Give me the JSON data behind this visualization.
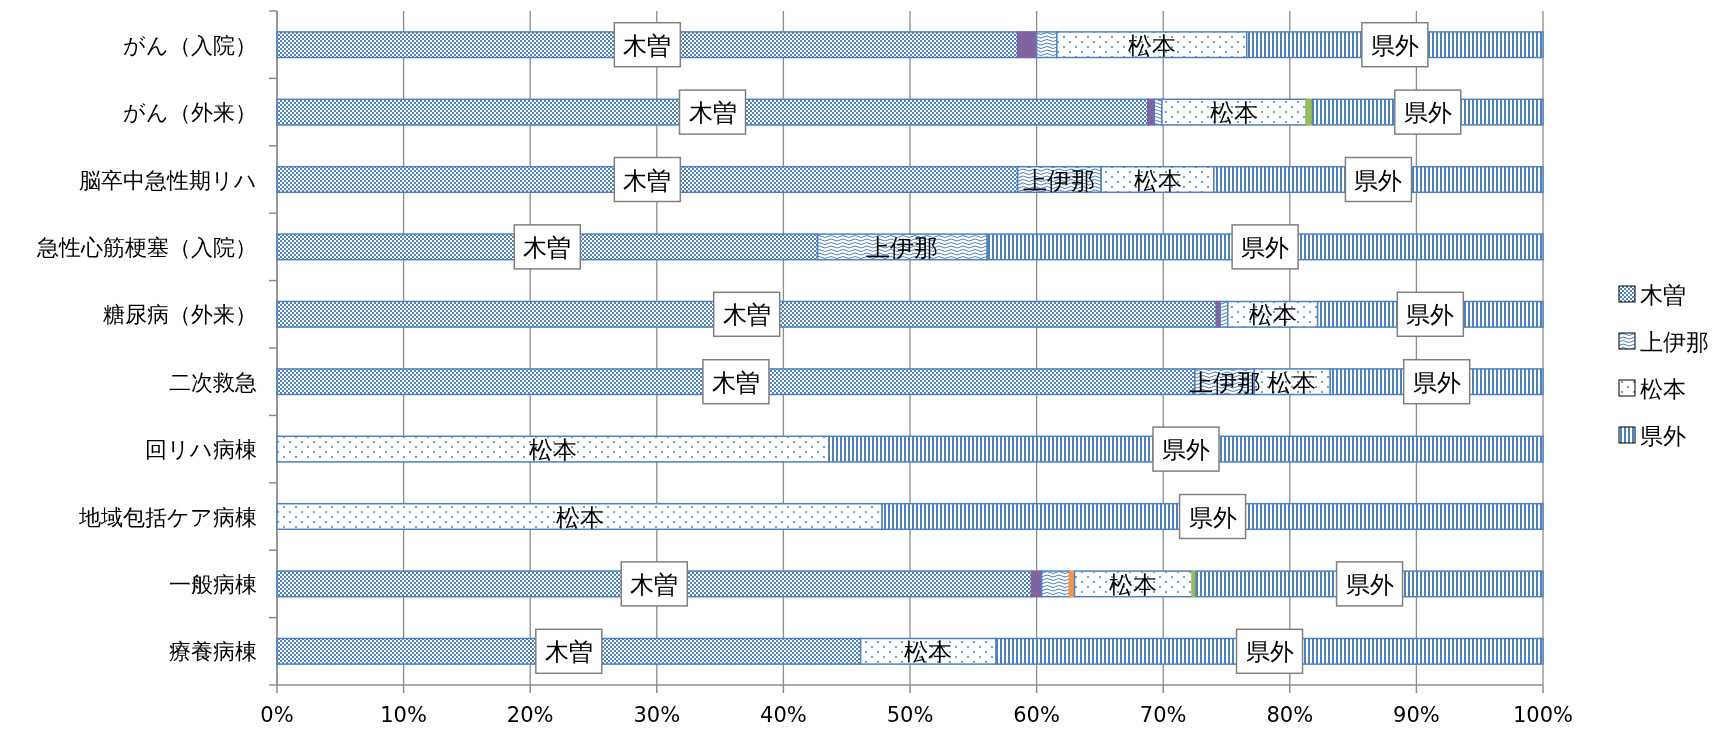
{
  "chart_data": {
    "type": "bar",
    "orientation": "horizontal",
    "stacked": true,
    "grid": "x",
    "legend": "right",
    "categories": [
      "がん（入院）",
      "がん（外来）",
      "脳卒中急性期リハ",
      "急性心筋梗塞（入院）",
      "糖尿病（外来）",
      "二次救急",
      "回リハ病棟",
      "地域包括ケア病棟",
      "一般病棟",
      "療養病棟"
    ],
    "xlim": [
      0,
      100
    ],
    "xticks": [
      {
        "value": 0,
        "label": "0%"
      },
      {
        "value": 10,
        "label": "10%"
      },
      {
        "value": 20,
        "label": "20%"
      },
      {
        "value": 30,
        "label": "30%"
      },
      {
        "value": 40,
        "label": "40%"
      },
      {
        "value": 50,
        "label": "50%"
      },
      {
        "value": 60,
        "label": "60%"
      },
      {
        "value": 70,
        "label": "70%"
      },
      {
        "value": 80,
        "label": "80%"
      },
      {
        "value": 90,
        "label": "90%"
      },
      {
        "value": 100,
        "label": "100%"
      }
    ],
    "series": [
      {
        "name": "木曽",
        "color": "#4f81bd",
        "values": [
          58.5,
          68.8,
          58.5,
          42.7,
          74.2,
          72.5,
          0,
          0,
          59.6,
          46.1
        ],
        "value_labels": [
          "木曽",
          "木曽",
          "木曽",
          "木曽",
          "木曽",
          "木曽",
          null,
          null,
          "木曽",
          "木曽"
        ]
      },
      {
        "color": "#8064a2",
        "values": [
          1.5,
          0.5,
          0,
          0,
          0.3,
          0,
          0,
          0,
          0.8,
          0
        ]
      },
      {
        "name": "上伊那",
        "color": "#4f81bd",
        "values": [
          1.6,
          0.6,
          6.6,
          13.4,
          0.6,
          4.7,
          0,
          0,
          2.2,
          0
        ],
        "value_labels": [
          null,
          null,
          "上伊那",
          "上伊那",
          null,
          "上伊那",
          null,
          null,
          null,
          null
        ]
      },
      {
        "color": "#f79646",
        "values": [
          0,
          0,
          0,
          0,
          0,
          0,
          0,
          0,
          0.4,
          0
        ]
      },
      {
        "name": "松本",
        "color": "#4f81bd",
        "values": [
          15.0,
          11.4,
          8.9,
          0,
          7.1,
          6.0,
          43.6,
          47.8,
          9.3,
          10.7
        ],
        "value_labels": [
          "松本",
          "松本",
          "松本",
          null,
          "松本",
          "松本",
          "松本",
          "松本",
          "松本",
          "松本"
        ]
      },
      {
        "color": "#9bbb59",
        "values": [
          0,
          0.5,
          0,
          0,
          0,
          0,
          0,
          0,
          0.3,
          0
        ]
      },
      {
        "name": "県外",
        "color": "#4f81bd",
        "values": [
          23.4,
          18.2,
          26.0,
          43.9,
          17.8,
          16.8,
          56.4,
          52.2,
          27.4,
          43.2
        ],
        "value_labels": [
          "県外",
          "県外",
          "県外",
          "県外",
          "県外",
          "県外",
          "県外",
          "県外",
          "県外",
          "県外"
        ]
      }
    ]
  }
}
